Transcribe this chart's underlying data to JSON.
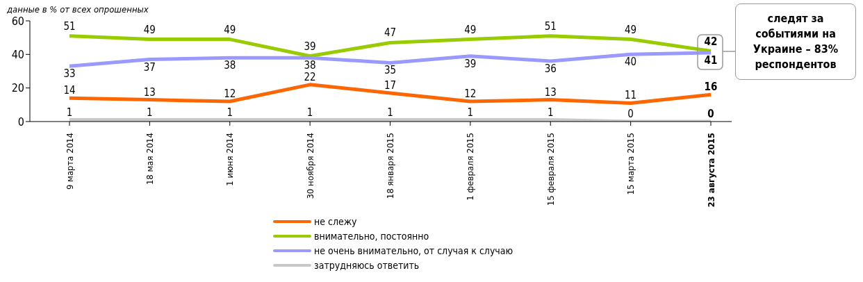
{
  "chart_data": {
    "type": "line",
    "categories": [
      "9 марта 2014",
      "18 мая 2014",
      "1 июня 2014",
      "30 ноября 2014",
      "18 января 2015",
      "1 февраля 2015",
      "15 февраля 2015",
      "15 марта 2015",
      "23 августа 2015"
    ],
    "series": [
      {
        "name": "не слежу",
        "color": "#ff6600",
        "values": [
          14,
          13,
          12,
          22,
          17,
          12,
          13,
          11,
          16
        ]
      },
      {
        "name": "внимательно, постоянно",
        "color": "#99cc00",
        "values": [
          51,
          49,
          49,
          39,
          47,
          49,
          51,
          49,
          42
        ]
      },
      {
        "name": "не очень внимательно, от случая к случаю",
        "color": "#9999ff",
        "values": [
          33,
          37,
          38,
          38,
          35,
          39,
          36,
          40,
          41
        ]
      },
      {
        "name": "затрудняюсь ответить",
        "color": "#c8c8c8",
        "values": [
          1,
          1,
          1,
          1,
          1,
          1,
          1,
          0,
          0
        ]
      }
    ],
    "ylim": [
      0,
      60
    ],
    "yticks": [
      0,
      20,
      40,
      60
    ],
    "grid": false,
    "legend": "bottom",
    "marker": "none",
    "line_style": "solid",
    "data_labels": true,
    "annotations": [
      "данные в % от всех опрошенных",
      "следят за событиями на Украине – 83% респондентов"
    ]
  }
}
